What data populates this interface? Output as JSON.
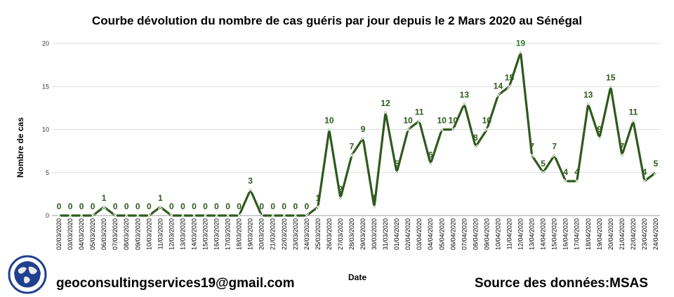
{
  "chart_data": {
    "type": "line",
    "title": "Courbe dévolution du nombre de cas guéris par jour depuis le 2 Mars 2020 au Sénégal",
    "xlabel": "Date",
    "ylabel": "Nombre de cas",
    "ylim": [
      0,
      20
    ],
    "yticks": [
      0,
      5,
      10,
      15,
      20
    ],
    "grid": true,
    "line_color": "#2e5a1c",
    "label_color": "#2e5a1c",
    "highlight_color": "#2e7d32",
    "categories": [
      "02/03/2020",
      "03/03/2020",
      "04/03/2020",
      "05/03/2020",
      "06/03/2020",
      "07/03/2020",
      "08/03/2020",
      "09/03/2020",
      "10/03/2020",
      "11/03/2020",
      "12/03/2020",
      "13/03/2020",
      "14/03/2020",
      "15/03/2020",
      "16/03/2020",
      "17/03/2020",
      "18/03/2020",
      "19/03/2020",
      "20/03/2020",
      "21/03/2020",
      "22/03/2020",
      "23/03/2020",
      "24/03/2020",
      "25/03/2020",
      "26/03/2020",
      "27/03/2020",
      "28/03/2020",
      "29/03/2020",
      "30/03/2020",
      "31/03/2020",
      "01/04/2020",
      "02/04/2020",
      "03/04/2020",
      "04/04/2020",
      "05/04/2020",
      "06/04/2020",
      "07/04/2020",
      "08/04/2020",
      "09/04/2020",
      "10/04/2020",
      "11/04/2020",
      "12/04/2020",
      "13/04/2020",
      "14/04/2020",
      "15/04/2020",
      "16/04/2020",
      "17/04/2020",
      "18/04/2020",
      "19/04/2020",
      "20/04/2020",
      "21/04/2020",
      "22/04/2020",
      "23/04/2020",
      "24/04/2020"
    ],
    "values": [
      0,
      0,
      0,
      0,
      1,
      0,
      0,
      0,
      0,
      1,
      0,
      0,
      0,
      0,
      0,
      0,
      0,
      3,
      0,
      0,
      0,
      0,
      0,
      1,
      10,
      2,
      7,
      9,
      1,
      12,
      5,
      10,
      11,
      6,
      10,
      10,
      13,
      8,
      10,
      14,
      15,
      19,
      7,
      5,
      7,
      4,
      4,
      13,
      9,
      15,
      7,
      11,
      4,
      5
    ]
  },
  "footer": {
    "email": "geoconsultingservices19@gmail.com",
    "source": "Source des données:MSAS"
  },
  "logo": {
    "icon": "globe-icon",
    "circle_color": "#1f3f8f",
    "land_color": "#e8e8e8"
  }
}
